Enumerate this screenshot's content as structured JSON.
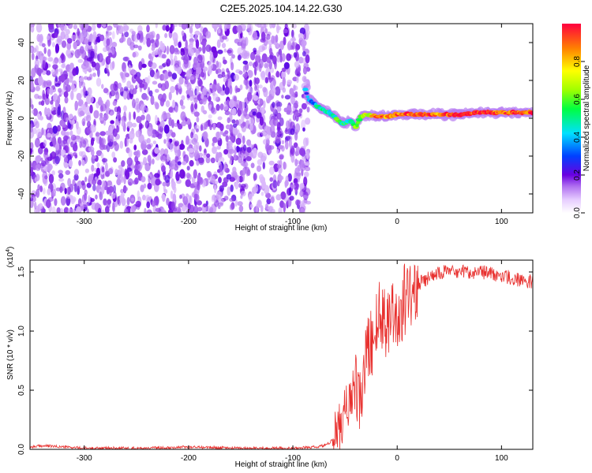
{
  "title": "C2E5.2025.104.14.22.G30",
  "chart_data": [
    {
      "type": "heatmap",
      "xlabel": "Height of straight line (km)",
      "ylabel": "Frequency (Hz)",
      "xlim": [
        -352,
        130
      ],
      "ylim": [
        -50,
        50
      ],
      "x_ticks": [
        -300,
        -200,
        -100,
        0,
        100
      ],
      "y_ticks": [
        -40,
        -20,
        0,
        20,
        40
      ],
      "colorbar": {
        "label": "Normalized spectral amplitude",
        "range": [
          0,
          1
        ],
        "ticks": [
          0.0,
          0.2,
          0.4,
          0.6,
          0.8
        ],
        "tick_labels": [
          "0.0",
          "0.2",
          "0.4",
          "0.6",
          "0.8"
        ]
      },
      "noise_region": {
        "x": [
          -352,
          -85
        ],
        "amplitude_range": [
          0.0,
          0.1
        ]
      },
      "signal_trace": {
        "x": [
          -88,
          -85,
          -80,
          -75,
          -70,
          -65,
          -60,
          -55,
          -50,
          -45,
          -40,
          -35,
          -30,
          -20,
          -10,
          0,
          20,
          40,
          60,
          80,
          100,
          120,
          130
        ],
        "y": [
          15,
          10,
          8,
          6,
          4,
          3,
          1,
          -2,
          -3,
          -1,
          -5,
          1,
          2,
          1,
          1,
          2,
          2,
          2,
          2,
          3,
          3,
          3,
          3
        ],
        "amplitude": [
          0.3,
          0.35,
          0.4,
          0.45,
          0.5,
          0.5,
          0.5,
          0.55,
          0.5,
          0.5,
          0.55,
          0.6,
          0.7,
          0.85,
          0.9,
          0.9,
          0.95,
          0.9,
          0.95,
          0.95,
          0.9,
          0.95,
          0.9
        ]
      }
    },
    {
      "type": "line",
      "xlabel": "Height of straight line (km)",
      "ylabel": "SNR (10 * v/v)",
      "y_multiplier": "(x10⁴)",
      "y_multiplier_base": "(x10",
      "y_multiplier_exp": "4",
      "y_multiplier_close": ")",
      "xlim": [
        -352,
        130
      ],
      "ylim": [
        0,
        1.6
      ],
      "x_ticks": [
        -300,
        -200,
        -100,
        0,
        100
      ],
      "y_ticks": [
        0.0,
        0.5,
        1.0,
        1.5
      ],
      "y_tick_labels": [
        "0.0",
        "0.5",
        "1.0",
        "1.5"
      ],
      "series": [
        {
          "color": "#e8302e",
          "x": [
            -352,
            -340,
            -300,
            -250,
            -200,
            -150,
            -100,
            -75,
            -65,
            -60,
            -55,
            -50,
            -45,
            -40,
            -35,
            -30,
            -25,
            -20,
            -15,
            -10,
            -5,
            0,
            5,
            10,
            15,
            20,
            30,
            40,
            60,
            80,
            100,
            110,
            120,
            130
          ],
          "y": [
            0.02,
            0.03,
            0.01,
            0.01,
            0.02,
            0.01,
            0.01,
            0.02,
            0.05,
            0.12,
            0.2,
            0.3,
            0.45,
            0.55,
            0.35,
            0.8,
            0.9,
            1.05,
            1.15,
            1.1,
            1.2,
            1.1,
            1.2,
            1.32,
            1.38,
            1.4,
            1.45,
            1.5,
            1.5,
            1.5,
            1.47,
            1.45,
            1.42,
            1.42
          ]
        }
      ]
    }
  ]
}
